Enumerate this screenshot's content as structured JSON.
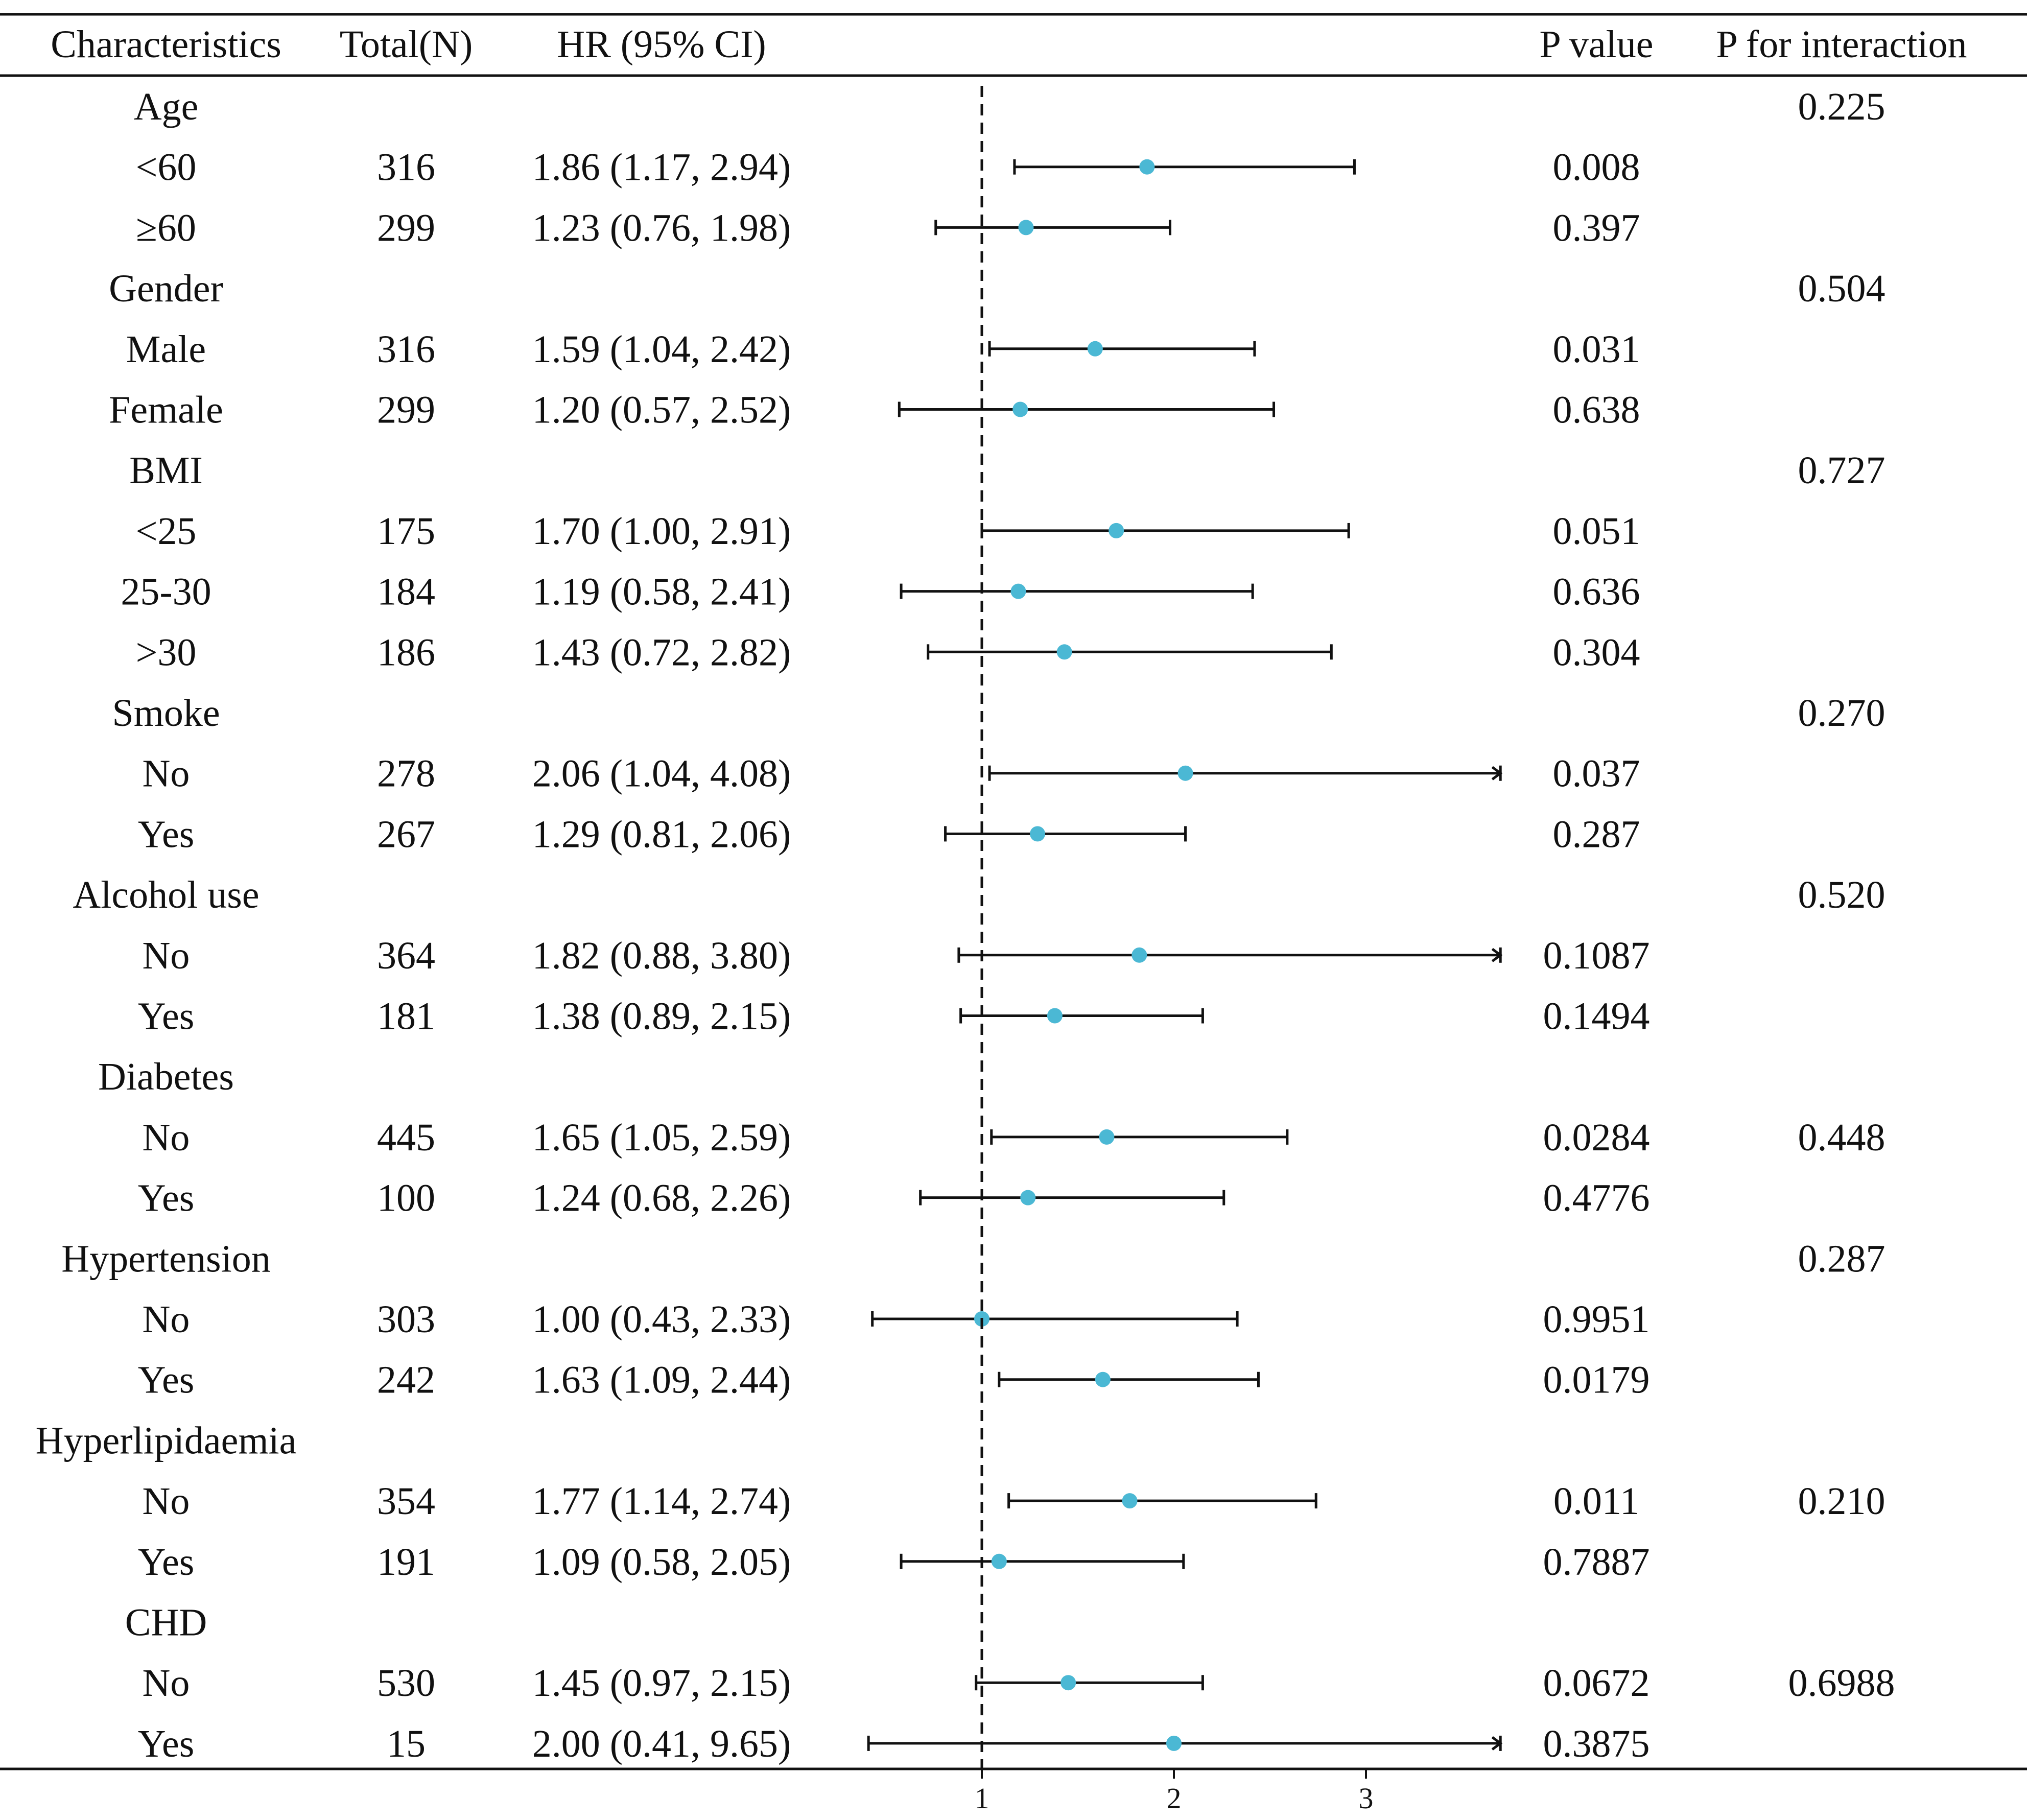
{
  "chart_data": {
    "type": "forest",
    "headers": {
      "characteristics": "Characteristics",
      "total": "Total(N)",
      "hr": "HR (95% CI)",
      "p": "P value",
      "p_interaction": "P for interaction"
    },
    "reference_line": 1,
    "xlim": [
      0.4,
      3.7
    ],
    "x_ticks": [
      1,
      2,
      3
    ],
    "x_tick_labels": [
      "1",
      "2",
      "3"
    ],
    "point_color": "#4bb8d4",
    "line_color": "#111111",
    "rows": [
      {
        "label": "Age",
        "is_group": true,
        "total": "",
        "hr_text": "",
        "hr": null,
        "lo": null,
        "hi": null,
        "p": "",
        "p_int": "0.225"
      },
      {
        "label": "<60",
        "is_group": false,
        "total": "316",
        "hr_text": "1.86 (1.17, 2.94)",
        "hr": 1.86,
        "lo": 1.17,
        "hi": 2.94,
        "p": "0.008",
        "p_int": ""
      },
      {
        "label": "≥60",
        "is_group": false,
        "total": "299",
        "hr_text": "1.23 (0.76, 1.98)",
        "hr": 1.23,
        "lo": 0.76,
        "hi": 1.98,
        "p": "0.397",
        "p_int": ""
      },
      {
        "label": "Gender",
        "is_group": true,
        "total": "",
        "hr_text": "",
        "hr": null,
        "lo": null,
        "hi": null,
        "p": "",
        "p_int": "0.504"
      },
      {
        "label": "Male",
        "is_group": false,
        "total": "316",
        "hr_text": "1.59 (1.04, 2.42)",
        "hr": 1.59,
        "lo": 1.04,
        "hi": 2.42,
        "p": "0.031",
        "p_int": ""
      },
      {
        "label": "Female",
        "is_group": false,
        "total": "299",
        "hr_text": "1.20 (0.57, 2.52)",
        "hr": 1.2,
        "lo": 0.57,
        "hi": 2.52,
        "p": "0.638",
        "p_int": ""
      },
      {
        "label": "BMI",
        "is_group": true,
        "total": "",
        "hr_text": "",
        "hr": null,
        "lo": null,
        "hi": null,
        "p": "",
        "p_int": "0.727"
      },
      {
        "label": "<25",
        "is_group": false,
        "total": "175",
        "hr_text": "1.70 (1.00, 2.91)",
        "hr": 1.7,
        "lo": 1.0,
        "hi": 2.91,
        "p": "0.051",
        "p_int": ""
      },
      {
        "label": "25-30",
        "is_group": false,
        "total": "184",
        "hr_text": "1.19 (0.58, 2.41)",
        "hr": 1.19,
        "lo": 0.58,
        "hi": 2.41,
        "p": "0.636",
        "p_int": ""
      },
      {
        "label": ">30",
        "is_group": false,
        "total": "186",
        "hr_text": "1.43 (0.72, 2.82)",
        "hr": 1.43,
        "lo": 0.72,
        "hi": 2.82,
        "p": "0.304",
        "p_int": ""
      },
      {
        "label": "Smoke",
        "is_group": true,
        "total": "",
        "hr_text": "",
        "hr": null,
        "lo": null,
        "hi": null,
        "p": "",
        "p_int": "0.270"
      },
      {
        "label": "No",
        "is_group": false,
        "total": "278",
        "hr_text": "2.06 (1.04, 4.08)",
        "hr": 2.06,
        "lo": 1.04,
        "hi": 4.08,
        "p": "0.037",
        "p_int": ""
      },
      {
        "label": "Yes",
        "is_group": false,
        "total": "267",
        "hr_text": "1.29 (0.81, 2.06)",
        "hr": 1.29,
        "lo": 0.81,
        "hi": 2.06,
        "p": "0.287",
        "p_int": ""
      },
      {
        "label": "Alcohol use",
        "is_group": true,
        "total": "",
        "hr_text": "",
        "hr": null,
        "lo": null,
        "hi": null,
        "p": "",
        "p_int": "0.520"
      },
      {
        "label": "No",
        "is_group": false,
        "total": "364",
        "hr_text": "1.82 (0.88, 3.80)",
        "hr": 1.82,
        "lo": 0.88,
        "hi": 3.8,
        "p": "0.1087",
        "p_int": ""
      },
      {
        "label": "Yes",
        "is_group": false,
        "total": "181",
        "hr_text": "1.38 (0.89, 2.15)",
        "hr": 1.38,
        "lo": 0.89,
        "hi": 2.15,
        "p": "0.1494",
        "p_int": ""
      },
      {
        "label": "Diabetes",
        "is_group": true,
        "total": "",
        "hr_text": "",
        "hr": null,
        "lo": null,
        "hi": null,
        "p": "",
        "p_int": ""
      },
      {
        "label": "No",
        "is_group": false,
        "total": "445",
        "hr_text": "1.65 (1.05, 2.59)",
        "hr": 1.65,
        "lo": 1.05,
        "hi": 2.59,
        "p": "0.0284",
        "p_int": "0.448"
      },
      {
        "label": "Yes",
        "is_group": false,
        "total": "100",
        "hr_text": "1.24 (0.68, 2.26)",
        "hr": 1.24,
        "lo": 0.68,
        "hi": 2.26,
        "p": "0.4776",
        "p_int": ""
      },
      {
        "label": "Hypertension",
        "is_group": true,
        "total": "",
        "hr_text": "",
        "hr": null,
        "lo": null,
        "hi": null,
        "p": "",
        "p_int": "0.287"
      },
      {
        "label": "No",
        "is_group": false,
        "total": "303",
        "hr_text": "1.00 (0.43, 2.33)",
        "hr": 1.0,
        "lo": 0.43,
        "hi": 2.33,
        "p": "0.9951",
        "p_int": ""
      },
      {
        "label": "Yes",
        "is_group": false,
        "total": "242",
        "hr_text": "1.63 (1.09, 2.44)",
        "hr": 1.63,
        "lo": 1.09,
        "hi": 2.44,
        "p": "0.0179",
        "p_int": ""
      },
      {
        "label": "Hyperlipidaemia",
        "is_group": true,
        "total": "",
        "hr_text": "",
        "hr": null,
        "lo": null,
        "hi": null,
        "p": "",
        "p_int": ""
      },
      {
        "label": "No",
        "is_group": false,
        "total": "354",
        "hr_text": "1.77 (1.14, 2.74)",
        "hr": 1.77,
        "lo": 1.14,
        "hi": 2.74,
        "p": "0.011",
        "p_int": "0.210"
      },
      {
        "label": "Yes",
        "is_group": false,
        "total": "191",
        "hr_text": "1.09 (0.58, 2.05)",
        "hr": 1.09,
        "lo": 0.58,
        "hi": 2.05,
        "p": "0.7887",
        "p_int": ""
      },
      {
        "label": "CHD",
        "is_group": true,
        "total": "",
        "hr_text": "",
        "hr": null,
        "lo": null,
        "hi": null,
        "p": "",
        "p_int": ""
      },
      {
        "label": "No",
        "is_group": false,
        "total": "530",
        "hr_text": "1.45 (0.97, 2.15)",
        "hr": 1.45,
        "lo": 0.97,
        "hi": 2.15,
        "p": "0.0672",
        "p_int": "0.6988"
      },
      {
        "label": "Yes",
        "is_group": false,
        "total": "15",
        "hr_text": "2.00 (0.41, 9.65)",
        "hr": 2.0,
        "lo": 0.41,
        "hi": 9.65,
        "p": "0.3875",
        "p_int": ""
      }
    ]
  }
}
